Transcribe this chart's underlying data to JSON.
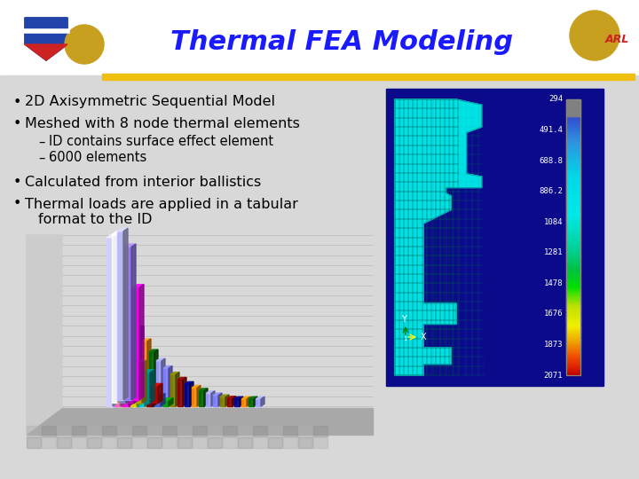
{
  "title": "Thermal FEA Modeling",
  "title_color": "#1a1aff",
  "bg_color": "#d8d8d8",
  "header_color": "#ffffff",
  "gold_color": "#f0c010",
  "bullet1": "2D Axisymmetric Sequential Model",
  "bullet2": "Meshed with 8 node thermal elements",
  "sub1": "ID contains surface effect element",
  "sub2": "6000 elements",
  "bullet3": "Calculated from interior ballistics",
  "bullet4a": "Thermal loads are applied in a tabular",
  "bullet4b": "format to the ID",
  "fea_bg": "#0a0a8a",
  "colorbar_labels": [
    "294",
    "491.4",
    "688.8",
    "886.2",
    "1084",
    "1281",
    "1478",
    "1676",
    "1873",
    "2071"
  ],
  "colorbar_stops": [
    [
      0.0,
      "#808080"
    ],
    [
      0.06,
      "#808080"
    ],
    [
      0.07,
      "#3050d0"
    ],
    [
      0.15,
      "#3090e0"
    ],
    [
      0.28,
      "#00d8e8"
    ],
    [
      0.42,
      "#00e8e8"
    ],
    [
      0.55,
      "#00d090"
    ],
    [
      0.62,
      "#00c040"
    ],
    [
      0.68,
      "#00e000"
    ],
    [
      0.75,
      "#c0e000"
    ],
    [
      0.82,
      "#f0f000"
    ],
    [
      0.88,
      "#f0a000"
    ],
    [
      0.93,
      "#f05000"
    ],
    [
      0.97,
      "#e02000"
    ],
    [
      1.0,
      "#c00000"
    ]
  ],
  "wall_color": "#d0d0d0",
  "wall_lines_color": "#b8b8b8",
  "floor_color": "#b0b0b0",
  "chart_bg": "#c8c8c8"
}
